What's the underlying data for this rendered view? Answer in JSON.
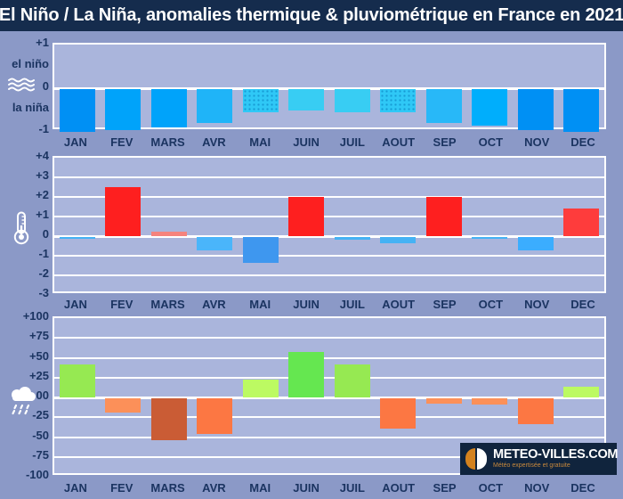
{
  "title": "El Niño / La Niña, anomalies thermique & pluviométrique en France en 2021",
  "months": [
    "JAN",
    "FEV",
    "MARS",
    "AVR",
    "MAI",
    "JUIN",
    "JUIL",
    "AOUT",
    "SEP",
    "OCT",
    "NOV",
    "DEC"
  ],
  "colors": {
    "page_bg": "#8b99c7",
    "title_bg": "#152c4d",
    "plot_bg": "#aab5dc",
    "grid": "#ffffff",
    "label_text": "#1b3461",
    "logo_bg": "#10243d",
    "logo_orange": "#d4821e"
  },
  "logo": {
    "name": "METEO-VILLES.COM",
    "tagline": "Météo expertisée et gratuite"
  },
  "chart_data": [
    {
      "type": "bar",
      "name": "enso-index",
      "title": "El Niño / La Niña index",
      "categories": [
        "JAN",
        "FEV",
        "MARS",
        "AVR",
        "MAI",
        "JUIN",
        "JUIL",
        "AOUT",
        "SEP",
        "OCT",
        "NOV",
        "DEC"
      ],
      "values": [
        -1.0,
        -0.95,
        -0.9,
        -0.8,
        -0.55,
        -0.5,
        -0.55,
        -0.55,
        -0.8,
        -0.85,
        -0.95,
        -1.0
      ],
      "ylim": [
        -1,
        1
      ],
      "grid": "zero-line-only",
      "legend": "none",
      "yticks": [
        {
          "label": "+1",
          "v": 1,
          "grid": false
        },
        {
          "label": "el niño",
          "v": 0.5,
          "grid": false
        },
        {
          "label": "0",
          "v": 0,
          "grid": true
        },
        {
          "label": "la niña",
          "v": -0.5,
          "grid": false
        },
        {
          "label": "-1",
          "v": -1,
          "grid": false
        }
      ],
      "bar_colors": [
        "#0090f4",
        "#00a3fa",
        "#00a3fa",
        "#1fb4f8",
        "#2fc8f6",
        "#38cdf3",
        "#38cdf3",
        "#2fc8f6",
        "#28b8f8",
        "#00aefc",
        "#0090f4",
        "#0090f4"
      ],
      "dotted": [
        false,
        false,
        false,
        false,
        true,
        false,
        false,
        true,
        false,
        false,
        false,
        false
      ]
    },
    {
      "type": "bar",
      "name": "temperature-anomaly",
      "title": "Anomalie thermique (°C)",
      "categories": [
        "JAN",
        "FEV",
        "MARS",
        "AVR",
        "MAI",
        "JUIN",
        "JUIL",
        "AOUT",
        "SEP",
        "OCT",
        "NOV",
        "DEC"
      ],
      "values": [
        -0.1,
        2.5,
        0.25,
        -0.7,
        -1.3,
        2.0,
        -0.15,
        -0.3,
        2.0,
        -0.1,
        -0.7,
        1.4
      ],
      "ylim": [
        -3,
        4
      ],
      "grid": "integer-gridlines",
      "legend": "none",
      "yticks": [
        {
          "label": "+4",
          "v": 4,
          "grid": false
        },
        {
          "label": "+3",
          "v": 3,
          "grid": true
        },
        {
          "label": "+2",
          "v": 2,
          "grid": true
        },
        {
          "label": "+1",
          "v": 1,
          "grid": true
        },
        {
          "label": "0",
          "v": 0,
          "grid": true
        },
        {
          "label": "-1",
          "v": -1,
          "grid": true
        },
        {
          "label": "-2",
          "v": -2,
          "grid": true
        },
        {
          "label": "-3",
          "v": -3,
          "grid": false
        }
      ],
      "bar_colors": [
        "#45b2f4",
        "#fe1f1f",
        "#f5837d",
        "#4ab5fa",
        "#3e97ef",
        "#fe1f1f",
        "#45b2f4",
        "#45b2f4",
        "#fe1f1f",
        "#45b2f4",
        "#3badfe",
        "#fe3c3c"
      ],
      "dotted": [
        false,
        false,
        false,
        false,
        false,
        false,
        false,
        false,
        false,
        false,
        false,
        false
      ]
    },
    {
      "type": "bar",
      "name": "precipitation-anomaly",
      "title": "Anomalie pluviométrique (%)",
      "categories": [
        "JAN",
        "FEV",
        "MARS",
        "AVR",
        "MAI",
        "JUIN",
        "JUIL",
        "AOUT",
        "SEP",
        "OCT",
        "NOV",
        "DEC"
      ],
      "values": [
        42,
        -18,
        -53,
        -45,
        22,
        57,
        42,
        -38,
        -7,
        -8,
        -33,
        13
      ],
      "ylim": [
        -100,
        100
      ],
      "grid": "25-step-gridlines",
      "legend": "none",
      "yticks": [
        {
          "label": "+100",
          "v": 100,
          "grid": false
        },
        {
          "label": "+75",
          "v": 75,
          "grid": true
        },
        {
          "label": "+50",
          "v": 50,
          "grid": true
        },
        {
          "label": "+25",
          "v": 25,
          "grid": true
        },
        {
          "label": "00",
          "v": 0,
          "grid": true
        },
        {
          "label": "-25",
          "v": -25,
          "grid": true
        },
        {
          "label": "-50",
          "v": -50,
          "grid": true
        },
        {
          "label": "-75",
          "v": -75,
          "grid": true
        },
        {
          "label": "-100",
          "v": -100,
          "grid": false
        }
      ],
      "bar_colors": [
        "#96e952",
        "#fc9059",
        "#ca5c35",
        "#fc7743",
        "#bcfa62",
        "#65e750",
        "#96e952",
        "#fc7743",
        "#fc9059",
        "#fc9059",
        "#fc7743",
        "#bcfa62"
      ],
      "dotted": [
        false,
        false,
        false,
        false,
        false,
        false,
        false,
        false,
        false,
        false,
        false,
        false
      ]
    }
  ]
}
